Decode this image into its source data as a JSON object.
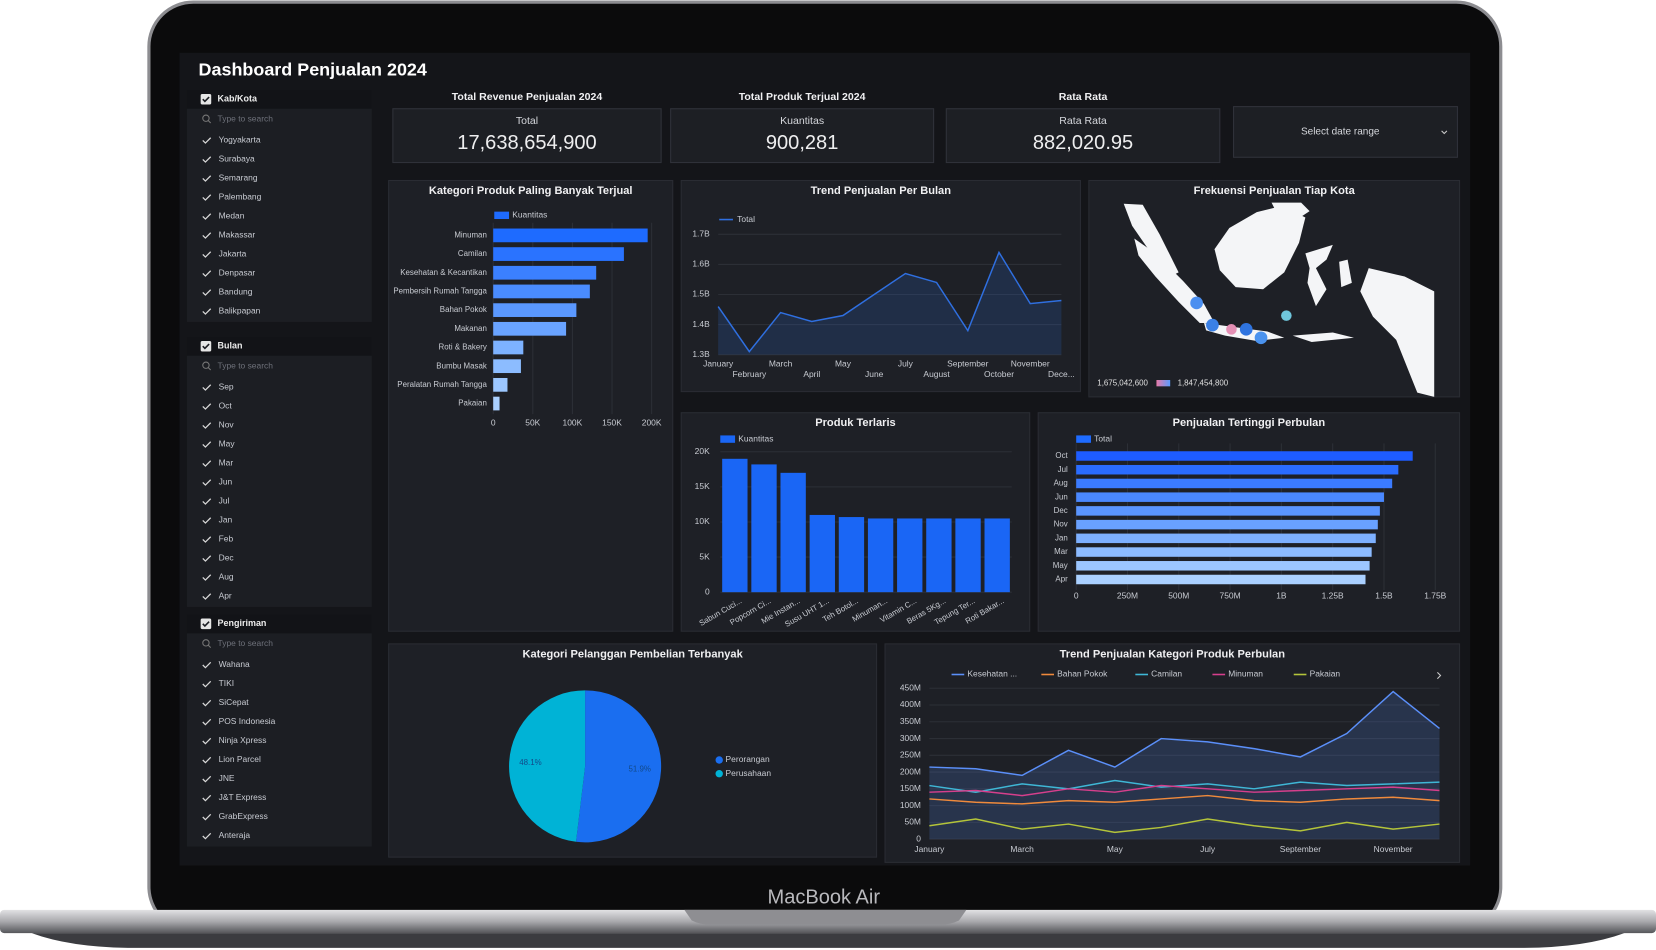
{
  "title": "Dashboard Penjualan 2024",
  "filters": [
    {
      "label": "Kab/Kota",
      "search_placeholder": "Type to search",
      "options": [
        "Yogyakarta",
        "Surabaya",
        "Semarang",
        "Palembang",
        "Medan",
        "Makassar",
        "Jakarta",
        "Denpasar",
        "Bandung",
        "Balikpapan"
      ]
    },
    {
      "label": "Bulan",
      "search_placeholder": "Type to search",
      "options": [
        "Sep",
        "Oct",
        "Nov",
        "May",
        "Mar",
        "Jun",
        "Jul",
        "Jan",
        "Feb",
        "Dec",
        "Aug",
        "Apr"
      ]
    },
    {
      "label": "Pengiriman",
      "search_placeholder": "Type to search",
      "options": [
        "Wahana",
        "TIKI",
        "SiCepat",
        "POS Indonesia",
        "Ninja Xpress",
        "Lion Parcel",
        "JNE",
        "J&T Express",
        "GrabExpress",
        "Anteraja"
      ]
    }
  ],
  "kpis": [
    {
      "heading": "Total Revenue Penjualan 2024",
      "label": "Total",
      "value": "17,638,654,900"
    },
    {
      "heading": "Total Produk Terjual 2024",
      "label": "Kuantitas",
      "value": "900,281"
    },
    {
      "heading": "Rata Rata",
      "label": "Rata Rata",
      "value": "882,020.95"
    }
  ],
  "date_range_placeholder": "Select date range",
  "device_label": "MacBook Air",
  "chart_data": [
    {
      "type": "bar",
      "horizontal": true,
      "title": "Kategori Produk Paling Banyak Terjual",
      "categories": [
        "Minuman",
        "Camilan",
        "Kesehatan & Kecantikan",
        "Pembersih Rumah Tangga",
        "Bahan Pokok",
        "Makanan",
        "Roti & Bakery",
        "Bumbu Masak",
        "Peralatan Rumah Tangga",
        "Pakaian"
      ],
      "series": [
        {
          "name": "Kuantitas",
          "color": "#1e6bff",
          "colors": [
            "#1e6bff",
            "#2a73ff",
            "#3b80ff",
            "#4a8cff",
            "#5a98ff",
            "#69a3ff",
            "#7db2ff",
            "#8cbcff",
            "#9cc7ff",
            "#aad0ff"
          ],
          "values": [
            195000,
            165000,
            130000,
            122000,
            105000,
            92000,
            38000,
            35000,
            18000,
            8000
          ]
        }
      ],
      "xlim": [
        0,
        200000
      ],
      "xticks": [
        0,
        {
          "value": 50000,
          "label": "50K"
        },
        {
          "value": 100000,
          "label": "100K"
        },
        {
          "value": 150000,
          "label": "150K"
        },
        {
          "value": 200000,
          "label": "200K"
        }
      ],
      "grid": true
    },
    {
      "type": "line",
      "title": "Trend Penjualan Per Bulan",
      "categories": [
        "January",
        "February",
        "March",
        "April",
        "May",
        "June",
        "July",
        "August",
        "September",
        "October",
        "November",
        "Dece..."
      ],
      "series": [
        {
          "name": "Total",
          "color": "#2f6fe0",
          "fill": true,
          "values": [
            1460000000,
            1310000000,
            1440000000,
            1410000000,
            1430000000,
            1500000000,
            1570000000,
            1540000000,
            1380000000,
            1640000000,
            1470000000,
            1480000000
          ]
        }
      ],
      "ylim": [
        1300000000,
        1700000000
      ],
      "yticks": [
        {
          "value": 1300000000,
          "label": "1.3B"
        },
        {
          "value": 1400000000,
          "label": "1.4B"
        },
        {
          "value": 1500000000,
          "label": "1.5B"
        },
        {
          "value": 1600000000,
          "label": "1.6B"
        },
        {
          "value": 1700000000,
          "label": "1.7B"
        }
      ],
      "grid": true
    },
    {
      "type": "map",
      "title": "Frekuensi Penjualan Tiap Kota",
      "color_scale_labels": [
        "1,675,042,600",
        "1,847,454,800"
      ]
    },
    {
      "type": "bar",
      "horizontal": false,
      "title": "Produk Terlaris",
      "categories": [
        "Sabun Cuci...",
        "Popcorn Ci...",
        "Mie Instan...",
        "Susu UHT 1...",
        "Teh Botol...",
        "Minuman...",
        "Vitamin C...",
        "Beras 5Kg...",
        "Tepung Ter...",
        "Roti Bakar..."
      ],
      "series": [
        {
          "name": "Kuantitas",
          "color": "#1a66f5",
          "values": [
            19000,
            18200,
            17000,
            11000,
            10700,
            10500,
            10500,
            10500,
            10500,
            10500
          ]
        }
      ],
      "ylim": [
        0,
        20000
      ],
      "yticks": [
        0,
        {
          "value": 5000,
          "label": "5K"
        },
        {
          "value": 10000,
          "label": "10K"
        },
        {
          "value": 15000,
          "label": "15K"
        },
        {
          "value": 20000,
          "label": "20K"
        }
      ],
      "grid": true
    },
    {
      "type": "bar",
      "horizontal": true,
      "title": "Penjualan Tertinggi Perbulan",
      "categories": [
        "Oct",
        "Jul",
        "Aug",
        "Jun",
        "Dec",
        "Nov",
        "Jan",
        "Mar",
        "May",
        "Apr"
      ],
      "series": [
        {
          "name": "Total",
          "color": "#1e6bff",
          "colors": [
            "#1e5cff",
            "#2a6cff",
            "#3b7bff",
            "#4a88ff",
            "#5a95ff",
            "#69a1ff",
            "#7db0ff",
            "#8cbbff",
            "#9cc6ff",
            "#aad0ff"
          ],
          "values": [
            1640000000,
            1570000000,
            1540000000,
            1500000000,
            1480000000,
            1470000000,
            1460000000,
            1440000000,
            1430000000,
            1410000000
          ]
        }
      ],
      "xlim": [
        0,
        1750000000
      ],
      "xticks": [
        0,
        {
          "value": 250000000,
          "label": "250M"
        },
        {
          "value": 500000000,
          "label": "500M"
        },
        {
          "value": 750000000,
          "label": "750M"
        },
        {
          "value": 1000000000,
          "label": "1B"
        },
        {
          "value": 1250000000,
          "label": "1.25B"
        },
        {
          "value": 1500000000,
          "label": "1.5B"
        },
        {
          "value": 1750000000,
          "label": "1.75B"
        }
      ],
      "grid": true
    },
    {
      "type": "pie",
      "title": "Kategori Pelanggan Pembelian Terbanyak",
      "categories": [
        "Perorangan",
        "Perusahaan"
      ],
      "values": [
        51.9,
        48.1
      ],
      "value_labels": [
        "51.9%",
        "48.1%"
      ],
      "colors": [
        "#1a6ef0",
        "#00b3d6"
      ]
    },
    {
      "type": "line",
      "title": "Trend Penjualan Kategori Produk Perbulan",
      "categories": [
        "January",
        null,
        "March",
        null,
        "May",
        null,
        "July",
        null,
        "September",
        null,
        "November",
        null
      ],
      "series": [
        {
          "name": "Kesehatan ...",
          "color": "#5b8ff9",
          "fill": true,
          "values": [
            215000000,
            210000000,
            190000000,
            265000000,
            215000000,
            300000000,
            290000000,
            270000000,
            245000000,
            315000000,
            440000000,
            330000000
          ]
        },
        {
          "name": "Bahan Pokok",
          "color": "#f08a3c",
          "values": [
            120000000,
            110000000,
            105000000,
            115000000,
            110000000,
            120000000,
            130000000,
            115000000,
            110000000,
            120000000,
            125000000,
            115000000
          ]
        },
        {
          "name": "Camilan",
          "color": "#3fb7d6",
          "values": [
            160000000,
            140000000,
            165000000,
            150000000,
            175000000,
            155000000,
            165000000,
            150000000,
            170000000,
            160000000,
            165000000,
            170000000
          ]
        },
        {
          "name": "Minuman",
          "color": "#d63f8c",
          "values": [
            140000000,
            145000000,
            130000000,
            150000000,
            140000000,
            160000000,
            150000000,
            140000000,
            145000000,
            150000000,
            155000000,
            145000000
          ]
        },
        {
          "name": "Pakaian",
          "color": "#b4c43a",
          "values": [
            40000000,
            60000000,
            30000000,
            45000000,
            20000000,
            35000000,
            60000000,
            40000000,
            25000000,
            50000000,
            30000000,
            45000000
          ]
        }
      ],
      "ylim": [
        0,
        450000000
      ],
      "yticks": [
        0,
        {
          "value": 50000000,
          "label": "50M"
        },
        {
          "value": 100000000,
          "label": "100M"
        },
        {
          "value": 150000000,
          "label": "150M"
        },
        {
          "value": 200000000,
          "label": "200M"
        },
        {
          "value": 250000000,
          "label": "250M"
        },
        {
          "value": 300000000,
          "label": "300M"
        },
        {
          "value": 350000000,
          "label": "350M"
        },
        {
          "value": 400000000,
          "label": "400M"
        },
        {
          "value": 450000000,
          "label": "450M"
        }
      ],
      "grid": true
    }
  ]
}
